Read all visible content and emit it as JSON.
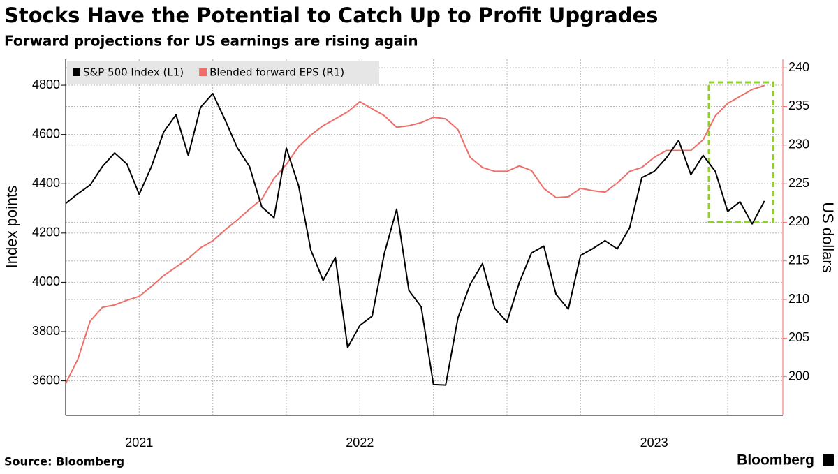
{
  "chart_data": {
    "type": "line",
    "title": "Stocks Have the Potential to Catch Up to Profit Upgrades",
    "subtitle": "Forward projections for US earnings are rising again",
    "y_label": "Index points",
    "y2_label": "US dollars",
    "source": "Source: Bloomberg",
    "brand": "Bloomberg",
    "categories": [
      null,
      null,
      null,
      null,
      null,
      null,
      "2021",
      null,
      null,
      null,
      null,
      null,
      null,
      null,
      null,
      null,
      null,
      null,
      null,
      null,
      null,
      null,
      null,
      null,
      "2022",
      null,
      null,
      null,
      null,
      null,
      null,
      null,
      null,
      null,
      null,
      null,
      null,
      null,
      null,
      null,
      null,
      null,
      null,
      null,
      null,
      null,
      null,
      null,
      "2023",
      null,
      null,
      null,
      null,
      null,
      null,
      null,
      null,
      null
    ],
    "series": [
      {
        "name": "S&P 500 Index (L1)",
        "color": "#000000",
        "axis": "y",
        "values": [
          4320,
          4360,
          4395,
          4470,
          4525,
          4480,
          4357,
          4470,
          4610,
          4680,
          4515,
          4710,
          4766,
          4660,
          4546,
          4470,
          4306,
          4262,
          4545,
          4392,
          4131,
          4008,
          4101,
          3735,
          3825,
          3863,
          4118,
          4297,
          3966,
          3901,
          3585,
          3583,
          3856,
          3992,
          4076,
          3895,
          3839,
          3999,
          4119,
          4147,
          3951,
          3891,
          4109,
          4137,
          4169,
          4136,
          4221,
          4425,
          4450,
          4505,
          4576,
          4437,
          4515,
          4450,
          4288,
          4327,
          4237,
          4330
        ]
      },
      {
        "name": "Blended forward EPS (R1)",
        "color": "#ee6e6a",
        "axis": "y2",
        "values": [
          199.1,
          202.3,
          207.2,
          209,
          209.3,
          209.9,
          210.4,
          211.7,
          213.1,
          214.2,
          215.3,
          216.7,
          217.6,
          219,
          220.3,
          221.7,
          223,
          225.7,
          227.5,
          229.8,
          231.3,
          232.5,
          233.4,
          234.3,
          235.6,
          234.7,
          233.8,
          232.3,
          232.5,
          232.9,
          233.6,
          233.4,
          232,
          228.4,
          227.1,
          226.6,
          226.6,
          227.3,
          226.7,
          224.4,
          223.2,
          223.3,
          224.4,
          224.1,
          223.9,
          225.1,
          226.6,
          227.1,
          228.4,
          229.3,
          229.3,
          229.3,
          230.7,
          233.8,
          235.4,
          236.3,
          237.2,
          237.7
        ]
      }
    ],
    "ylim": [
      3460,
      4905
    ],
    "yticks": [
      3600,
      3800,
      4000,
      4200,
      4400,
      4600,
      4800
    ],
    "y2lim": [
      195,
      241.1
    ],
    "y2ticks": [
      200,
      205,
      210,
      215,
      220,
      225,
      230,
      235,
      240
    ],
    "grid": true,
    "legend": "top-left"
  }
}
